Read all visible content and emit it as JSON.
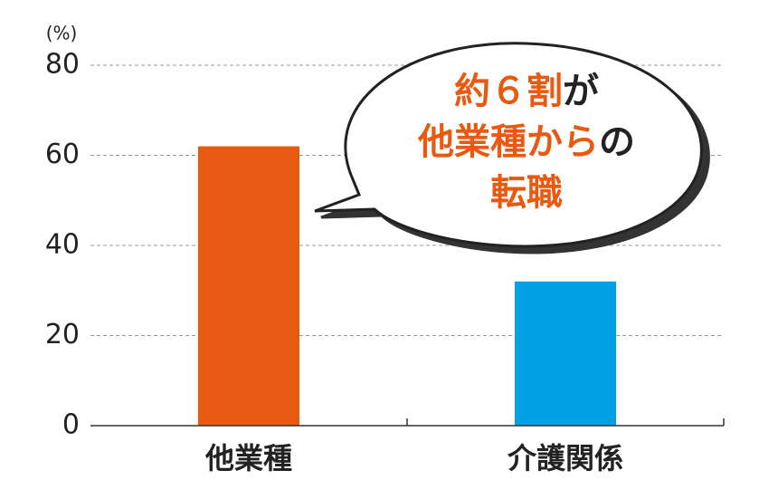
{
  "chart_data": {
    "type": "bar",
    "y_unit": "(%)",
    "categories": [
      "他業種",
      "介護関係"
    ],
    "values": [
      62,
      32
    ],
    "colors": [
      "#e85a12",
      "#00a0e6"
    ],
    "ylim": [
      0,
      80
    ],
    "yticks": [
      0,
      20,
      40,
      60,
      80
    ],
    "grid": true,
    "annotation": [
      [
        {
          "text": "約６割",
          "color": "#e85a12"
        },
        {
          "text": "が",
          "color": "#222222"
        }
      ],
      [
        {
          "text": "他業種から",
          "color": "#e85a12"
        },
        {
          "text": "の",
          "color": "#222222"
        }
      ],
      [
        {
          "text": "転職",
          "color": "#e85a12"
        }
      ]
    ]
  }
}
